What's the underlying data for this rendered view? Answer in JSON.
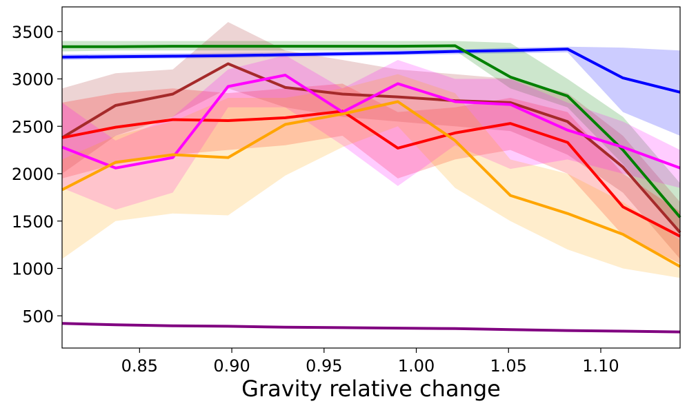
{
  "chart_data": {
    "type": "line",
    "title": "",
    "xlabel": "Gravity relative change",
    "ylabel": "",
    "xlim": [
      0.808,
      1.143
    ],
    "ylim": [
      160,
      3760
    ],
    "xticks": [
      0.85,
      0.9,
      0.95,
      1.0,
      1.05,
      1.1
    ],
    "xtick_labels": [
      "0.85",
      "0.90",
      "0.95",
      "1.00",
      "1.05",
      "1.10"
    ],
    "yticks": [
      500,
      1000,
      1500,
      2000,
      2500,
      3000,
      3500
    ],
    "ytick_labels": [
      "500",
      "1000",
      "1500",
      "2000",
      "2500",
      "3000",
      "3500"
    ],
    "grid": false,
    "x": [
      0.808,
      0.837,
      0.868,
      0.898,
      0.929,
      0.96,
      0.99,
      1.021,
      1.051,
      1.082,
      1.112,
      1.143
    ],
    "series": [
      {
        "name": "blue",
        "color": "#0000ff",
        "values": [
          3230,
          3235,
          3240,
          3245,
          3255,
          3265,
          3275,
          3290,
          3300,
          3315,
          3010,
          2860
        ],
        "lower": [
          3200,
          3210,
          3215,
          3220,
          3230,
          3240,
          3250,
          3260,
          3270,
          3280,
          2650,
          2400
        ],
        "upper": [
          3260,
          3265,
          3270,
          3275,
          3280,
          3290,
          3300,
          3310,
          3330,
          3340,
          3330,
          3300
        ]
      },
      {
        "name": "green",
        "color": "#008000",
        "values": [
          3340,
          3340,
          3345,
          3345,
          3345,
          3345,
          3345,
          3350,
          3020,
          2820,
          2250,
          1540
        ],
        "lower": [
          3290,
          3300,
          3300,
          3300,
          3300,
          3300,
          3300,
          3300,
          2900,
          2700,
          2100,
          1400
        ],
        "upper": [
          3400,
          3400,
          3400,
          3400,
          3400,
          3400,
          3400,
          3400,
          3380,
          3000,
          2600,
          1900
        ]
      },
      {
        "name": "brown",
        "color": "#a52a2a",
        "values": [
          2380,
          2720,
          2840,
          3160,
          2910,
          2840,
          2810,
          2770,
          2750,
          2550,
          2070,
          1380
        ],
        "lower": [
          2000,
          2400,
          2600,
          2900,
          2700,
          2600,
          2550,
          2500,
          2450,
          2200,
          1800,
          1100
        ],
        "upper": [
          2900,
          3060,
          3100,
          3600,
          3300,
          3200,
          3100,
          3050,
          3000,
          2850,
          2400,
          1700
        ]
      },
      {
        "name": "red",
        "color": "#ff0000",
        "values": [
          2380,
          2490,
          2570,
          2560,
          2590,
          2660,
          2270,
          2430,
          2530,
          2330,
          1650,
          1340
        ],
        "lower": [
          1950,
          2100,
          2200,
          2250,
          2300,
          2400,
          1950,
          2150,
          2250,
          2000,
          1350,
          1050
        ],
        "upper": [
          2750,
          2850,
          2900,
          2850,
          2900,
          2950,
          2650,
          2700,
          2800,
          2650,
          2000,
          1600
        ]
      },
      {
        "name": "magenta",
        "color": "#ff00ff",
        "values": [
          2280,
          2060,
          2170,
          2920,
          3040,
          2650,
          2950,
          2760,
          2730,
          2460,
          2280,
          2060
        ],
        "lower": [
          1850,
          1620,
          1800,
          2700,
          2700,
          2300,
          1870,
          2300,
          2050,
          2150,
          2000,
          1850
        ],
        "upper": [
          2750,
          2350,
          2600,
          3100,
          3250,
          2900,
          3200,
          3000,
          3000,
          2750,
          2550,
          2250
        ]
      },
      {
        "name": "orange",
        "color": "#ffa500",
        "values": [
          1830,
          2120,
          2200,
          2170,
          2520,
          2630,
          2760,
          2350,
          1770,
          1580,
          1360,
          1020
        ],
        "lower": [
          1100,
          1500,
          1580,
          1560,
          1980,
          2280,
          2500,
          1850,
          1500,
          1200,
          1000,
          900
        ],
        "upper": [
          2150,
          2400,
          2550,
          2800,
          2800,
          2900,
          3050,
          2850,
          2150,
          2000,
          1700,
          1300
        ]
      },
      {
        "name": "purple",
        "color": "#800080",
        "values": [
          420,
          405,
          395,
          390,
          380,
          375,
          370,
          365,
          355,
          345,
          338,
          330
        ],
        "lower": [
          410,
          395,
          385,
          380,
          370,
          365,
          360,
          355,
          345,
          335,
          328,
          320
        ],
        "upper": [
          430,
          415,
          405,
          400,
          390,
          385,
          380,
          375,
          365,
          355,
          348,
          340
        ]
      }
    ]
  }
}
